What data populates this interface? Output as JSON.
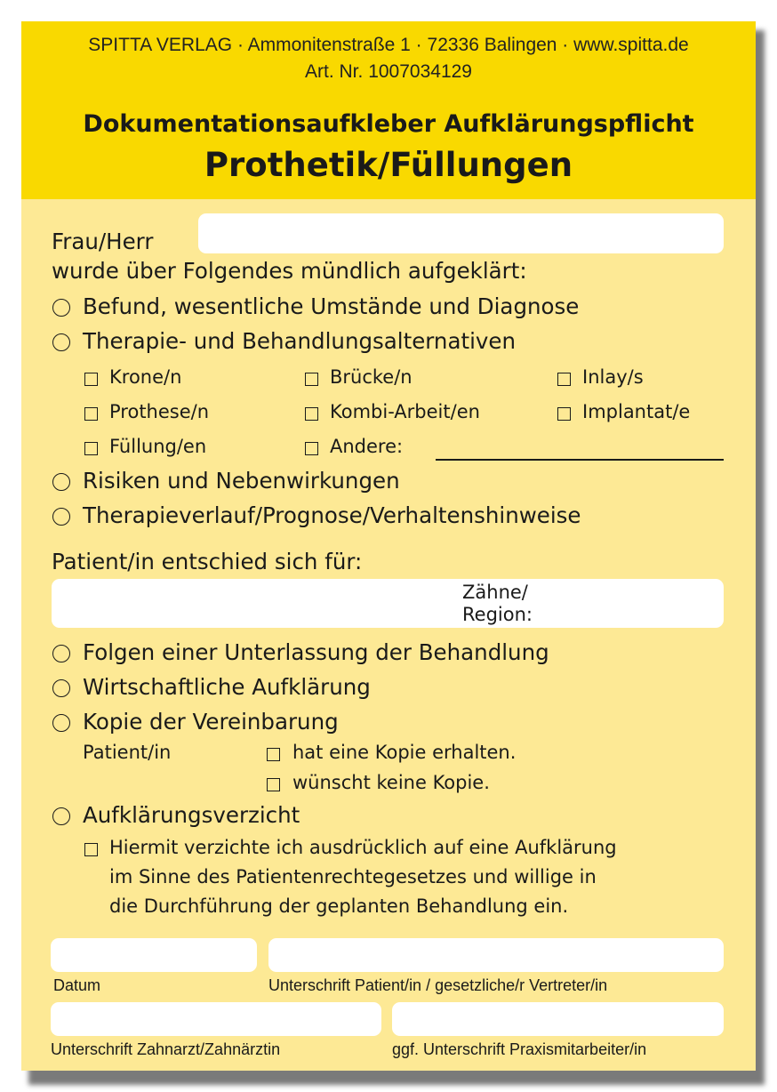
{
  "publisher": {
    "line1": "SPITTA VERLAG · Ammonitenstraße 1 · 72336 Balingen · www.spitta.de",
    "line2": "Art. Nr. 1007034129"
  },
  "title": {
    "main": "Dokumentationsaufkleber Aufklärungspflicht",
    "sub": "Prothetik/Füllungen"
  },
  "intro": {
    "name_label": "Frau/Herr",
    "informed": "wurde über Folgendes mündlich aufgeklärt:"
  },
  "items": {
    "befund": "Befund, wesentliche Umstände und Diagnose",
    "therapie": "Therapie- und Behandlungsalternativen",
    "options": [
      "Krone/n",
      "Brücke/n",
      "Inlay/s",
      "Prothese/n",
      "Kombi-Arbeit/en",
      "Implantat/e",
      "Füllung/en",
      "Andere:"
    ],
    "risiken": "Risiken und Nebenwirkungen",
    "verlauf": "Therapieverlauf/Prognose/Verhaltenshinweise",
    "decision": "Patient/in entschied sich für:",
    "teeth_label_1": "Zähne/",
    "teeth_label_2": "Region:",
    "folgen": "Folgen einer Unterlassung der Behandlung",
    "wirtschaft": "Wirtschaftliche Aufklärung",
    "kopie": "Kopie der Vereinbarung",
    "kopie_patient": "Patient/in",
    "kopie_opt1": "hat eine Kopie erhalten.",
    "kopie_opt2": "wünscht keine Kopie.",
    "verzicht": "Aufklärungsverzicht",
    "verzicht_text": [
      "Hiermit verzichte ich ausdrücklich auf eine Aufklärung",
      "im Sinne des Patientenrechtegesetzes und willige in",
      "die Durchführung der geplanten Behandlung ein."
    ]
  },
  "signatures": {
    "datum": "Datum",
    "patient": "Unterschrift Patient/in / gesetzliche/r Vertreter/in",
    "zahnarzt": "Unterschrift Zahnarzt/Zahnärztin",
    "mitarbeiter": "ggf. Unterschrift Praxismitarbeiter/in"
  },
  "colors": {
    "header": "#F9D900",
    "body": "#FDE995"
  }
}
